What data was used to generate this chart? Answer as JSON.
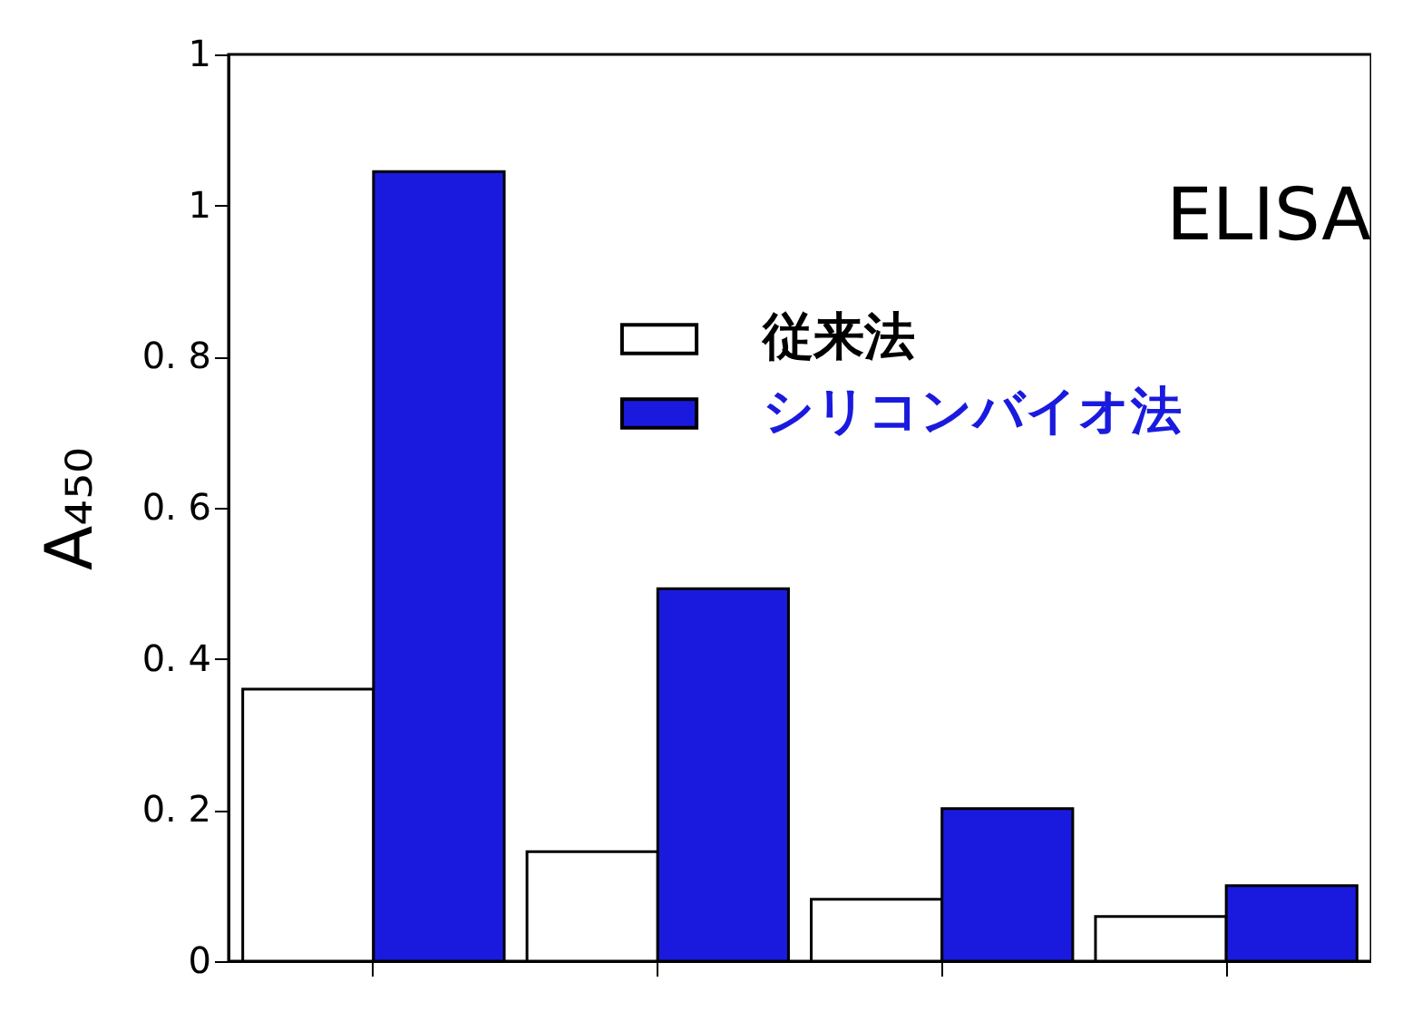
{
  "chart_data": {
    "type": "bar",
    "title": "ELISA",
    "ylabel": "A₄₅₀",
    "categories": [
      null,
      null,
      null,
      null
    ],
    "series": [
      {
        "name": "従来法",
        "color": "#ffffff",
        "values": [
          0.36,
          0.145,
          0.082,
          0.059
        ]
      },
      {
        "name": "シリコンバイオ法",
        "color": "#1a1adf",
        "values": [
          1.045,
          0.493,
          0.202,
          0.1
        ]
      }
    ],
    "ylim": [
      0,
      1.2
    ],
    "yticks": [
      0,
      {
        "value": 0.2,
        "label": "0. 2"
      },
      {
        "value": 0.4,
        "label": "0. 4"
      },
      {
        "value": 0.6,
        "label": "0. 6"
      },
      {
        "value": 0.8,
        "label": "0. 8"
      },
      1,
      {
        "value": 1.2,
        "label": "1"
      }
    ],
    "grid": false,
    "legend": "top right",
    "tick_labels": "y"
  }
}
